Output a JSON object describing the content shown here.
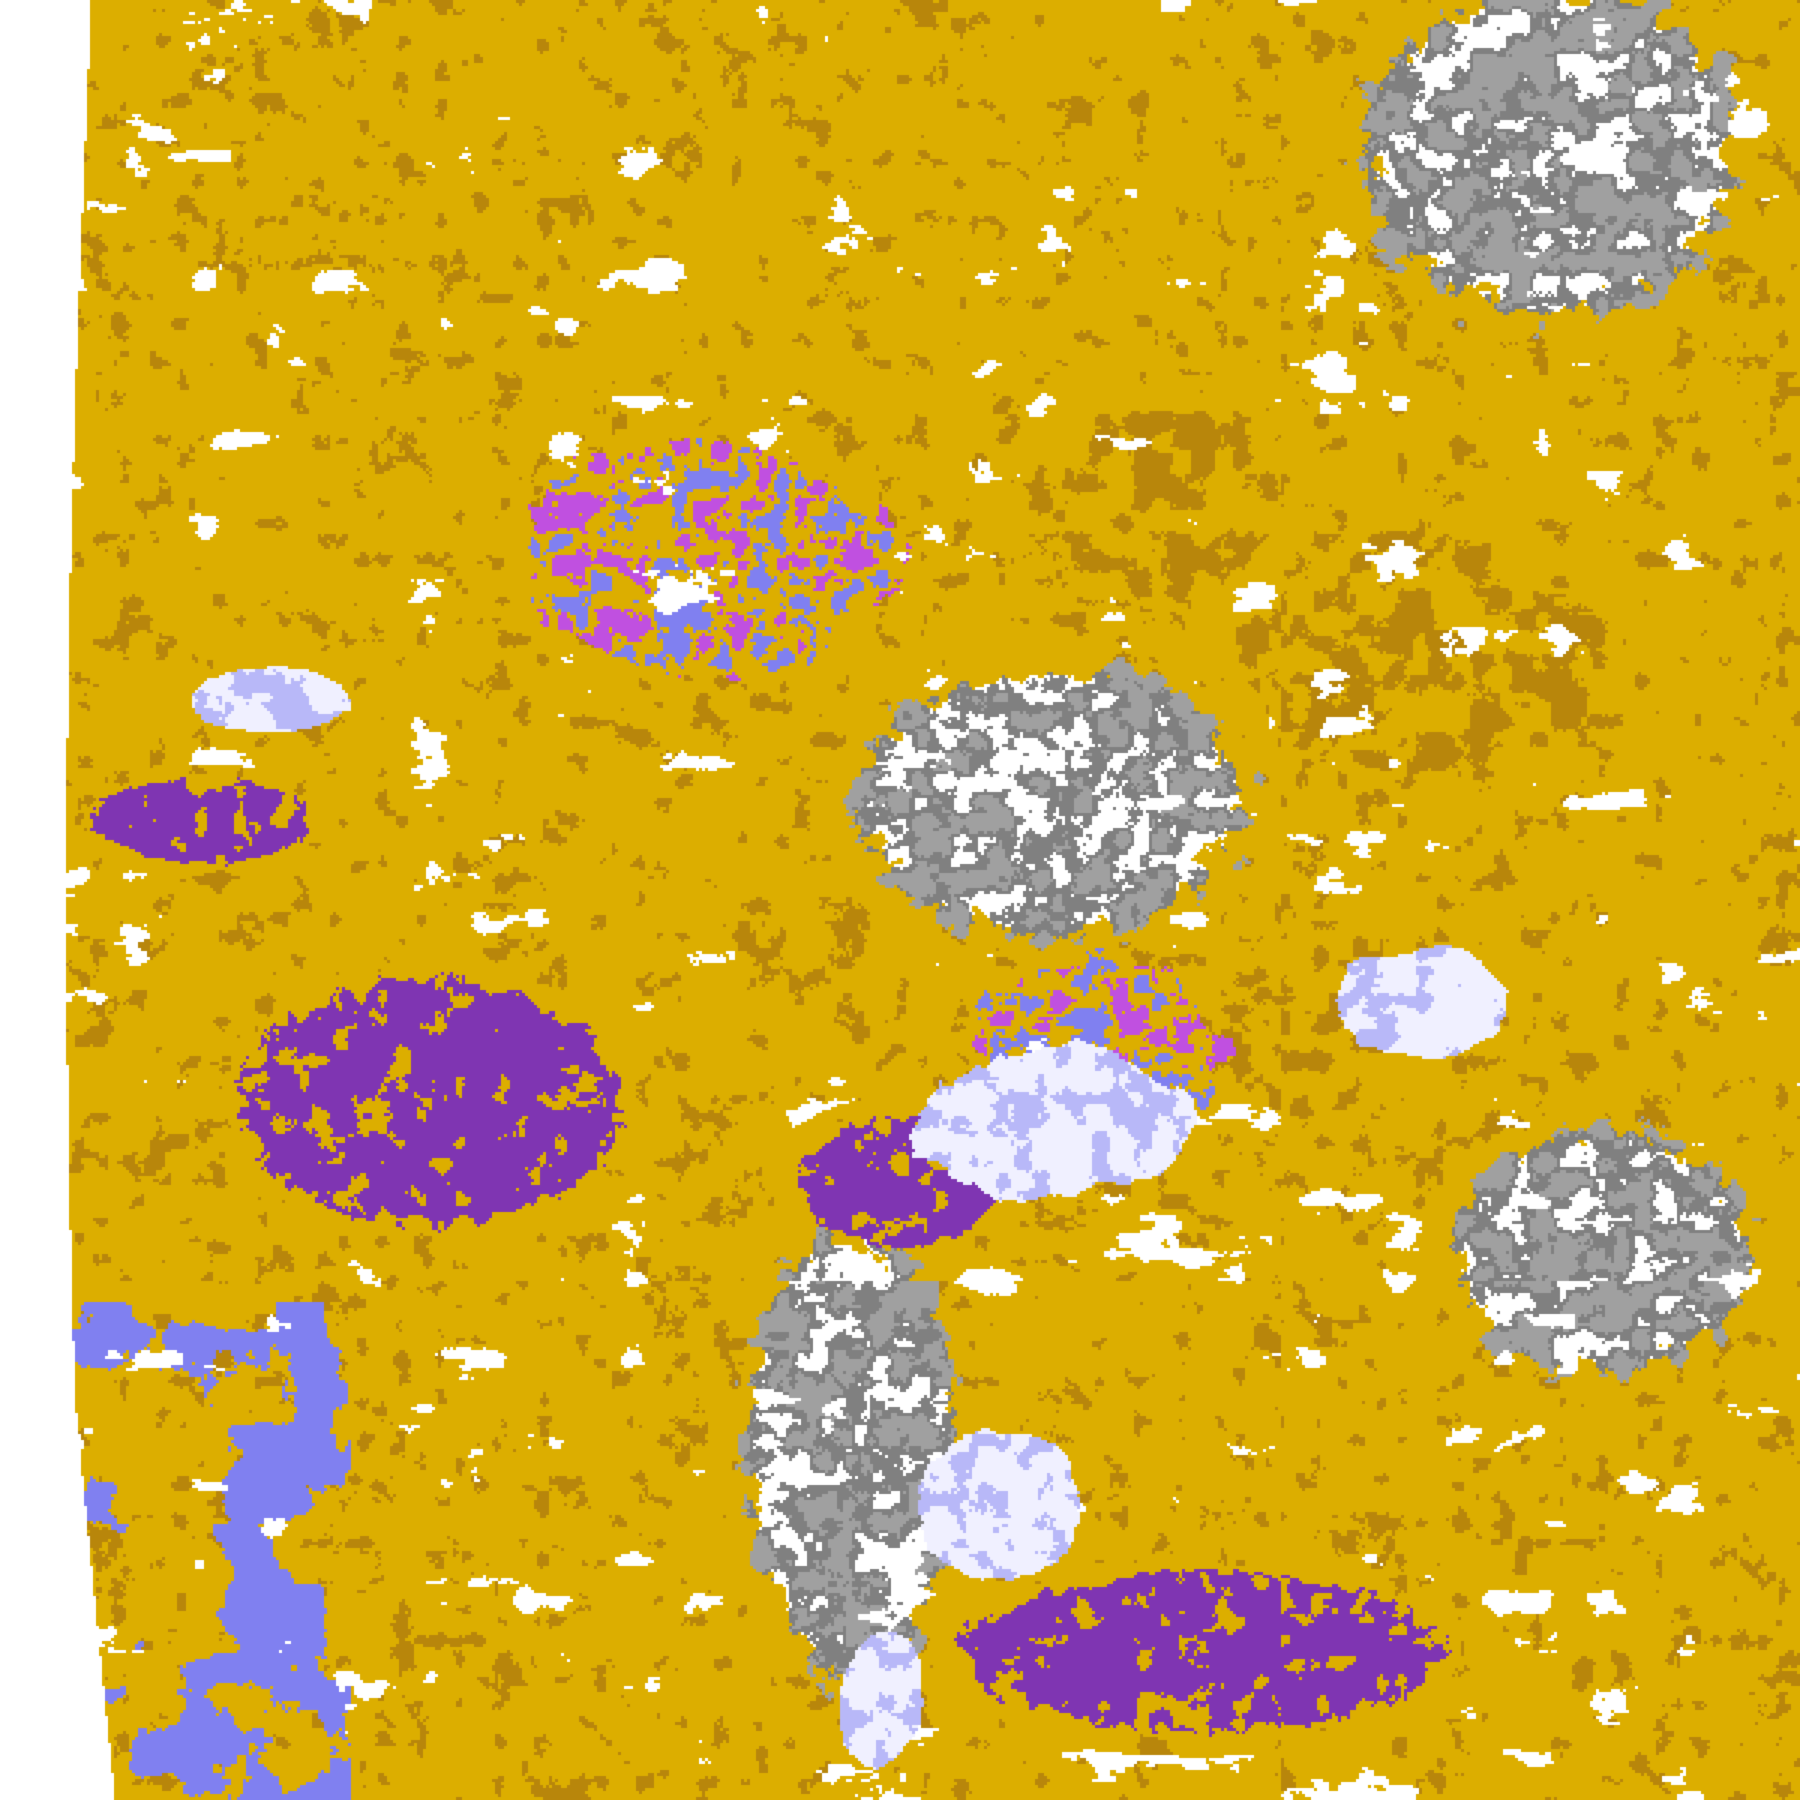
{
  "image": {
    "kind": "false-color satellite imagery",
    "palette": {
      "background": "#ffffff",
      "gold": "#dcae00",
      "dark_gold": "#b8860b",
      "purple": "#7f35b2",
      "lavender": "#8080f0",
      "magenta": "#c050e0",
      "pale_cloud": "#f0f0ff",
      "light_lavender": "#b8b8f8",
      "gray": "#a0a0a0",
      "dark_gray": "#808080"
    }
  }
}
